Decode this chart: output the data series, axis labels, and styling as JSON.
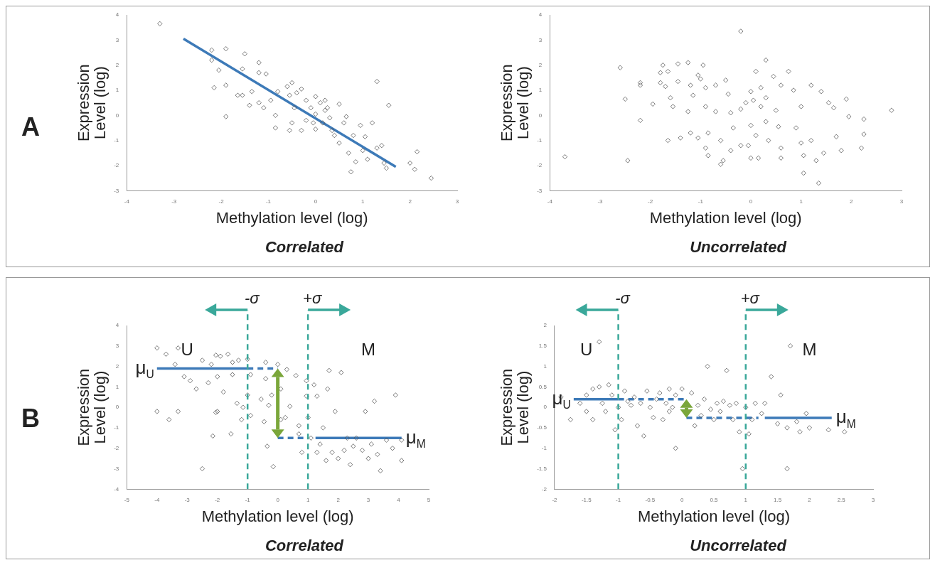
{
  "chart_data": [
    {
      "type": "scatter",
      "title": "A",
      "subtitle": "Correlated",
      "xlabel": "Methylation level (log)",
      "ylabel": "Expression Level (log)",
      "xlim": [
        -4,
        3
      ],
      "xticks": [
        -4,
        -3,
        -2,
        -1,
        0,
        1,
        2,
        3
      ],
      "ylim": [
        -3,
        4
      ],
      "yticks": [
        -3,
        -2,
        -1,
        0,
        1,
        2,
        3,
        4
      ],
      "marker": "diamond",
      "series": [
        {
          "color": "#555555",
          "x": [
            -3.3,
            -2.2,
            -1.9,
            -1.5,
            -2.2,
            -2.05,
            -1.2,
            -1.55,
            -1.2,
            -1.05,
            -2.15,
            -1.9,
            -1.35,
            -1.65,
            -1.55,
            -1.4,
            -1.2,
            -1.1,
            -0.95,
            -1.9,
            -0.85,
            -0.85,
            -0.8,
            -0.6,
            -0.5,
            -0.55,
            -0.4,
            -0.3,
            -0.45,
            -0.5,
            -0.55,
            -0.3,
            -0.2,
            -0.2,
            -0.1,
            0,
            0,
            0,
            0.1,
            0.2,
            0.2,
            0.3,
            0.35,
            0.5,
            0.4,
            0.5,
            0.6,
            0.65,
            0.7,
            0.75,
            0.8,
            0.85,
            0.95,
            1,
            1.05,
            1.1,
            1.2,
            1.3,
            1.3,
            1.4,
            1.45,
            1.55,
            1.5,
            2,
            2.1,
            2.15,
            2.45,
            0.25,
            -0.05,
            0.15
          ],
          "values": [
            3.65,
            2.6,
            2.65,
            2.45,
            2.2,
            1.8,
            2.1,
            1.85,
            1.7,
            1.65,
            1.1,
            1.2,
            0.95,
            0.8,
            0.8,
            0.4,
            0.5,
            0.3,
            0.6,
            -0.05,
            -0.5,
            0,
            0.95,
            1.15,
            1.3,
            0.8,
            0.9,
            1.05,
            0.3,
            -0.3,
            -0.6,
            -0.6,
            -0.2,
            0.6,
            0.3,
            0.75,
            0.05,
            -0.55,
            0.5,
            0.6,
            0.2,
            -0.1,
            -0.6,
            0.45,
            -0.8,
            -1.1,
            -0.3,
            -0.05,
            -1.5,
            -2.25,
            -0.8,
            -1.85,
            -0.4,
            -1.4,
            -0.85,
            -1.75,
            -0.3,
            1.35,
            -1.3,
            -1.2,
            -1.9,
            0.4,
            -2.1,
            -1.9,
            -2.15,
            -1.45,
            -2.5,
            0.3,
            -0.3,
            -0.3
          ]
        },
        {
          "type": "line",
          "marker": "none",
          "color": "#3d7ab8",
          "x": [
            -2.8,
            1.7
          ],
          "values": [
            3.05,
            -2.05
          ]
        }
      ]
    },
    {
      "type": "scatter",
      "subtitle": "Uncorrelated",
      "xlabel": "Methylation level (log)",
      "ylabel": "Expression Level (log)",
      "xlim": [
        -4,
        3
      ],
      "xticks": [
        -4,
        -3,
        -2,
        -1,
        0,
        1,
        2,
        3
      ],
      "ylim": [
        -3,
        4
      ],
      "yticks": [
        -3,
        -2,
        -1,
        0,
        1,
        2,
        3,
        4
      ],
      "marker": "diamond",
      "series": [
        {
          "color": "#555555",
          "x": [
            -3.7,
            -2.6,
            -2.5,
            -2.45,
            -2.2,
            -2.2,
            -2.2,
            -1.95,
            -1.75,
            -1.8,
            -1.65,
            -1.8,
            -1.7,
            -1.6,
            -1.55,
            -1.65,
            -1.45,
            -1.45,
            -1.4,
            -1.25,
            -1.2,
            -1.15,
            -1.05,
            -1,
            -1.25,
            -1.2,
            -1.05,
            -0.95,
            -0.9,
            -0.9,
            -0.85,
            -0.9,
            -0.85,
            -0.7,
            -0.7,
            -0.6,
            -0.55,
            -0.6,
            -0.5,
            -0.45,
            -0.4,
            -0.35,
            -0.4,
            -0.2,
            -0.2,
            -0.1,
            0,
            0.05,
            0,
            -0.05,
            0,
            0.1,
            0.1,
            0.2,
            0.2,
            0.15,
            0.3,
            0.3,
            0.3,
            0.35,
            0.45,
            0.5,
            0.55,
            0.6,
            0.6,
            0.6,
            0.75,
            0.85,
            0.9,
            1,
            1,
            1.05,
            1.05,
            1.2,
            1.2,
            1.3,
            1.35,
            1.4,
            1.45,
            1.55,
            1.65,
            1.7,
            1.8,
            1.9,
            1.95,
            2.2,
            2.25,
            2.25,
            2.8,
            -0.2
          ],
          "values": [
            -1.65,
            1.9,
            0.65,
            -1.8,
            1.3,
            1.2,
            -0.2,
            0.45,
            2,
            1.7,
            1.75,
            1.3,
            1.15,
            0.7,
            0.35,
            -1,
            2.05,
            1.35,
            -0.9,
            2.1,
            1.2,
            0.8,
            1.6,
            1.45,
            0.15,
            -0.7,
            -0.9,
            2,
            1.1,
            0.35,
            -0.7,
            -1.3,
            -1.6,
            1.2,
            0.15,
            -1,
            -1.8,
            -1.95,
            1.4,
            0.85,
            0.1,
            -0.5,
            -1.4,
            -1.2,
            0.25,
            0.5,
            0.95,
            0.6,
            -0.4,
            -1.2,
            -1.7,
            -0.8,
            1.75,
            1.1,
            0.35,
            -1.7,
            2.2,
            0.7,
            -0.25,
            -1,
            1.55,
            0.2,
            -0.45,
            -1.3,
            -1.7,
            1.2,
            1.75,
            1,
            -0.5,
            0.35,
            -1.1,
            -1.6,
            -2.3,
            1.2,
            -1,
            -1.8,
            -2.7,
            0.95,
            -1.5,
            0.5,
            0.3,
            -0.85,
            -1.4,
            0.65,
            -0.05,
            -1.3,
            -0.15,
            -0.75,
            0.2,
            3.35
          ]
        }
      ]
    },
    {
      "type": "scatter",
      "title": "B",
      "subtitle": "Correlated",
      "xlabel": "Methylation level (log)",
      "ylabel": "Expression Level (log)",
      "xlim": [
        -5,
        5
      ],
      "xticks": [
        -5,
        -4,
        -3,
        -2,
        -1,
        0,
        1,
        2,
        3,
        4,
        5
      ],
      "ylim": [
        -4,
        4
      ],
      "yticks": [
        -4,
        -3,
        -2,
        -1,
        0,
        1,
        2,
        3,
        4
      ],
      "marker": "diamond",
      "ref_lines": [
        {
          "axis": "x",
          "value": -1,
          "label": "-σ",
          "color": "#3aa89a",
          "line_style": "dashed"
        },
        {
          "axis": "x",
          "value": 1,
          "label": "+σ",
          "color": "#3aa89a",
          "line_style": "dashed"
        }
      ],
      "annotations": [
        "U",
        "M"
      ],
      "series": [
        {
          "color": "#555555",
          "x": [
            -4,
            -3.7,
            -3.3,
            -3.4,
            -3.1,
            -2.9,
            -2.7,
            -2.5,
            -2.3,
            -2.2,
            -2.05,
            -2,
            -1.9,
            -1.8,
            -1.65,
            -1.5,
            -1.5,
            -1.3,
            -1.2,
            -1.55,
            -2,
            -2.15,
            -2.05,
            -3.6,
            -3.3,
            -4,
            -2.5,
            -1.35,
            -1.15,
            -1,
            -0.9,
            -1,
            -0.9,
            -0.55,
            -0.4,
            -0.4,
            -0.45,
            -0.3,
            -0.35,
            -0.2,
            -0.15,
            0,
            0.1,
            0.1,
            0.25,
            0.3,
            0.4,
            0.6,
            0.7,
            0.7,
            0.8,
            0.95,
            0.95,
            1,
            1.1,
            1.2,
            1.3,
            1.4,
            1.5,
            1.65,
            1.7,
            1.8,
            1.9,
            2,
            2.1,
            2.2,
            2.3,
            2.4,
            2.5,
            2.6,
            2.8,
            2.9,
            3.1,
            3.2,
            3.3,
            3.4,
            3.6,
            3.8,
            3.9,
            4.1,
            4.1,
            3,
            1.6,
            1.3
          ],
          "values": [
            2.9,
            2.6,
            2.9,
            2.1,
            1.5,
            1.3,
            0.9,
            2.3,
            1.2,
            2.1,
            2.55,
            1.5,
            2.5,
            0.75,
            2.6,
            2.2,
            1.6,
            2.3,
            -0.6,
            -1.3,
            -0.2,
            -1.4,
            -0.25,
            -0.6,
            -0.2,
            -0.2,
            -3,
            0.2,
            0,
            2.35,
            1.6,
            0.6,
            -0.4,
            0.4,
            2.2,
            1.4,
            -0.7,
            0.1,
            -1.9,
            0.6,
            -2.9,
            2.1,
            0.9,
            -0.6,
            -0.5,
            1.85,
            0.05,
            1.55,
            -0.9,
            -1.3,
            -2.2,
            1.3,
            0.55,
            -0.5,
            -1.5,
            1.1,
            0.55,
            -1.8,
            -1,
            0.9,
            1.8,
            -2.2,
            -0.2,
            -2.5,
            1.7,
            -2.1,
            -1.5,
            -2.8,
            -1.9,
            -1.5,
            -2.1,
            -0.2,
            -1.8,
            0.3,
            -2.3,
            -3.1,
            -1.6,
            -2,
            0.6,
            -1.6,
            -2.6,
            -2.5,
            -2.6,
            -2.2
          ]
        },
        {
          "type": "line",
          "marker": "none",
          "name": "μ$_{U}$",
          "color": "#3d7ab8",
          "x": [
            -4,
            -1
          ],
          "values": [
            1.9,
            1.9
          ]
        },
        {
          "type": "line",
          "marker": "none",
          "line_style": "dashed",
          "color": "#3d7ab8",
          "x": [
            -1,
            0
          ],
          "values": [
            1.9,
            1.9
          ]
        },
        {
          "type": "line",
          "marker": "none",
          "line_style": "dashed",
          "color": "#3d7ab8",
          "x": [
            0,
            1
          ],
          "values": [
            -1.5,
            -1.5
          ]
        },
        {
          "type": "line",
          "marker": "none",
          "name": "μ$_{M}$",
          "color": "#3d7ab8",
          "x": [
            1.25,
            4.1
          ],
          "values": [
            -1.5,
            -1.5
          ]
        }
      ]
    },
    {
      "type": "scatter",
      "subtitle": "Uncorrelated",
      "xlabel": "Methylation level (log)",
      "ylabel": "Expression Level (log)",
      "xlim": [
        -2,
        3
      ],
      "xticks": [
        -2,
        -1.5,
        -1,
        -0.5,
        0,
        0.5,
        1,
        1.5,
        2,
        2.5,
        3
      ],
      "ylim": [
        -2,
        2
      ],
      "yticks": [
        -2,
        -1.5,
        -1,
        -0.5,
        0,
        0.5,
        1,
        1.5,
        2
      ],
      "marker": "diamond",
      "ref_lines": [
        {
          "axis": "x",
          "value": -1,
          "label": "-σ",
          "color": "#3aa89a",
          "line_style": "dashed"
        },
        {
          "axis": "x",
          "value": 1,
          "label": "+σ",
          "color": "#3aa89a",
          "line_style": "dashed"
        }
      ],
      "annotations": [
        "U",
        "M"
      ],
      "series": [
        {
          "color": "#555555",
          "x": [
            -1.9,
            -1.75,
            -1.6,
            -1.5,
            -1.5,
            -1.4,
            -1.4,
            -1.3,
            -1.25,
            -1.2,
            -1.15,
            -1.05,
            -1.1,
            -1,
            -0.95,
            -0.9,
            -0.85,
            -0.8,
            -0.75,
            -0.7,
            -0.65,
            -0.6,
            -0.55,
            -0.5,
            -0.45,
            -0.4,
            -0.35,
            -0.3,
            -0.25,
            -0.2,
            -0.2,
            -0.15,
            -0.1,
            -0.1,
            0,
            0.15,
            0.2,
            0.25,
            0.3,
            0.35,
            0.4,
            0.45,
            0.5,
            0.55,
            0.6,
            0.65,
            0.7,
            0.75,
            0.8,
            0.85,
            0.9,
            0.95,
            1,
            1.05,
            1.1,
            1.15,
            1.25,
            1.3,
            1.4,
            1.5,
            1.55,
            1.65,
            1.65,
            1.7,
            1.8,
            1.85,
            1.95,
            2,
            2.3,
            2.55,
            -1.3
          ],
          "values": [
            0.25,
            -0.3,
            0.1,
            -0.1,
            0.3,
            -0.3,
            0.45,
            0.5,
            0.1,
            -0.1,
            0.55,
            -0.55,
            0.3,
            0,
            -0.3,
            0.4,
            0.15,
            0.05,
            0.25,
            -0.45,
            0.1,
            -0.7,
            0.4,
            0,
            -0.25,
            0.2,
            0.35,
            -0.3,
            0.1,
            0.45,
            -0.1,
            0,
            0.3,
            -1,
            0.45,
            0.35,
            -0.45,
            0.05,
            -0.2,
            0.2,
            1,
            -0.05,
            -0.3,
            0.1,
            -0.1,
            0.15,
            0.9,
            0.05,
            -0.3,
            0.1,
            -0.6,
            -1.5,
            0,
            -0.65,
            -0.3,
            0.1,
            -0.15,
            0.1,
            0.75,
            -0.4,
            0.3,
            -0.5,
            -1.5,
            1.5,
            -0.35,
            -0.6,
            -0.15,
            -0.5,
            -0.55,
            -0.6,
            1.6
          ]
        },
        {
          "type": "line",
          "marker": "none",
          "name": "μ$_{U}$",
          "color": "#3d7ab8",
          "x": [
            -1.7,
            -1
          ],
          "values": [
            0.2,
            0.2
          ]
        },
        {
          "type": "line",
          "marker": "none",
          "line_style": "dashed",
          "color": "#3d7ab8",
          "x": [
            -1,
            0.07
          ],
          "values": [
            0.2,
            0.2
          ]
        },
        {
          "type": "line",
          "marker": "none",
          "line_style": "dashed",
          "color": "#3d7ab8",
          "x": [
            0.07,
            1.2
          ],
          "values": [
            -0.26,
            -0.26
          ]
        },
        {
          "type": "line",
          "marker": "none",
          "name": "μ$_{M}$",
          "color": "#3d7ab8",
          "x": [
            1.3,
            2.35
          ],
          "values": [
            -0.26,
            -0.26
          ]
        }
      ]
    }
  ]
}
